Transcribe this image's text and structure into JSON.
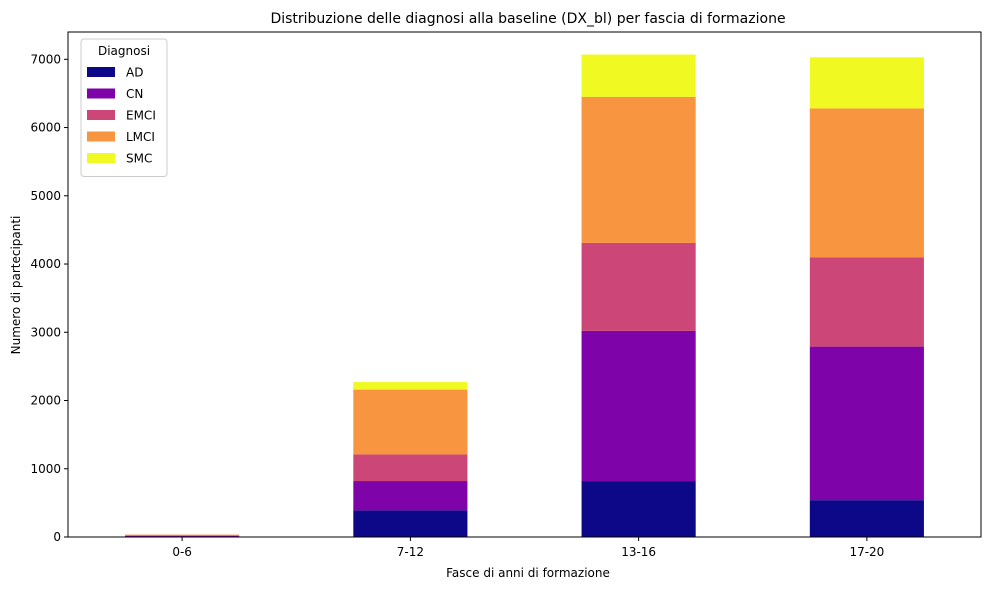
{
  "chart_data": {
    "type": "bar",
    "stacked": true,
    "title": "Distribuzione delle diagnosi alla baseline (DX_bl) per fascia di formazione",
    "xlabel": "Fasce di anni di formazione",
    "ylabel": "Numero di partecipanti",
    "categories": [
      "0-6",
      "7-12",
      "13-16",
      "17-20"
    ],
    "ylim": [
      0,
      7400
    ],
    "yticks": [
      0,
      1000,
      2000,
      3000,
      4000,
      5000,
      6000,
      7000
    ],
    "grid": false,
    "legend": {
      "title": "Diagnosi",
      "placement": "top-left"
    },
    "series": [
      {
        "name": "AD",
        "color": "#0d0887",
        "values": [
          5,
          390,
          820,
          540
        ]
      },
      {
        "name": "CN",
        "color": "#7e03a8",
        "values": [
          10,
          430,
          2200,
          2250
        ]
      },
      {
        "name": "EMCI",
        "color": "#cc4778",
        "values": [
          10,
          390,
          1290,
          1310
        ]
      },
      {
        "name": "LMCI",
        "color": "#f89540",
        "values": [
          10,
          950,
          2140,
          2180
        ]
      },
      {
        "name": "SMC",
        "color": "#f0f921",
        "values": [
          0,
          110,
          620,
          750
        ]
      }
    ]
  }
}
